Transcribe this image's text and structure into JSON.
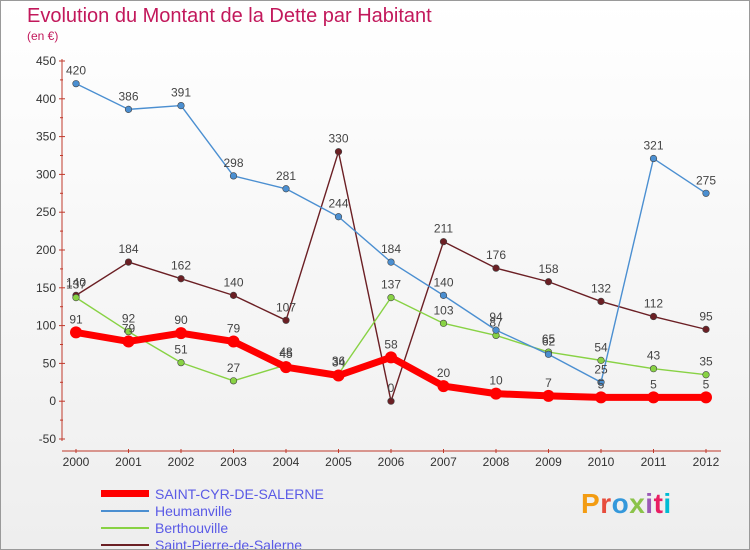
{
  "title": "Evolution du Montant de la Dette par Habitant",
  "subtitle": "(en €)",
  "logo": {
    "text": "Proxiti",
    "colors": [
      "#f39c12",
      "#e74c3c",
      "#3498db",
      "#8bc34a",
      "#9b59b6",
      "#e91e63",
      "#00bcd4"
    ]
  },
  "chart_data": {
    "type": "line",
    "x": [
      "2000",
      "2001",
      "2002",
      "2003",
      "2004",
      "2005",
      "2006",
      "2007",
      "2008",
      "2009",
      "2010",
      "2011",
      "2012"
    ],
    "ylim": [
      -50,
      450
    ],
    "yticks": [
      "-50",
      "0",
      "50",
      "100",
      "150",
      "200",
      "250",
      "300",
      "350",
      "400",
      "450"
    ],
    "grid": false,
    "legend_position": "bottom-left",
    "series": [
      {
        "name": "SAINT-CYR-DE-SALERNE",
        "color": "#ff0000",
        "values": [
          91,
          79,
          90,
          79,
          45,
          34,
          58,
          20,
          10,
          7,
          5,
          5,
          5
        ]
      },
      {
        "name": "Heumanville",
        "color": "#4b8fd1",
        "values": [
          420,
          386,
          391,
          298,
          281,
          244,
          184,
          140,
          94,
          62,
          25,
          321,
          275
        ]
      },
      {
        "name": "Berthouville",
        "color": "#88d244",
        "values": [
          137,
          92,
          51,
          27,
          48,
          36,
          137,
          103,
          87,
          65,
          54,
          43,
          35
        ]
      },
      {
        "name": "Saint-Pierre-de-Salerne",
        "color": "#6b1f24",
        "values": [
          140,
          184,
          162,
          140,
          107,
          330,
          0,
          211,
          176,
          158,
          132,
          112,
          95
        ]
      }
    ]
  }
}
